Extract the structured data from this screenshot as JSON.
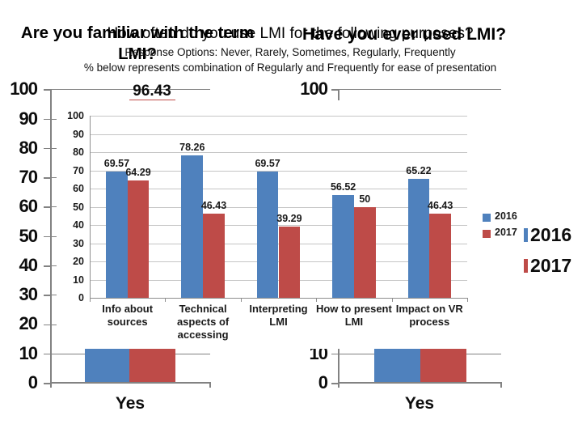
{
  "slide": {
    "titles": {
      "familiar_line1": "Are you familiar with the term",
      "familiar_line2": "LMI?",
      "how_often": "How often do you use LMI for the following purposes?",
      "ever_used": "Have you ever used LMI?",
      "subtitle1": "Response Options: Never, Rarely, Sometimes, Regularly, Frequently",
      "subtitle2": "% below represents combination of Regularly and Frequently for ease of presentation"
    },
    "colors": {
      "blue_2016": "#4f81bd",
      "red_2017": "#be4b48",
      "bg_grid": "#828282",
      "fg_grid": "#c5c5c5",
      "fg_axis": "#8e8e8e"
    }
  },
  "chart_data": [
    {
      "id": "are-you-familiar",
      "type": "bar",
      "title": "Are you familiar with the term LMI?",
      "categories": [
        "Yes"
      ],
      "series": [
        {
          "name": "2016",
          "color": "#4f81bd",
          "values": [
            null
          ]
        },
        {
          "name": "2017",
          "color": "#be4b48",
          "values": [
            96.43
          ]
        }
      ],
      "ylim": [
        0,
        100
      ],
      "ytick_step": 10,
      "grid": true,
      "legend_position": "none-visible",
      "note": "background chart; bars mostly hidden behind the front chart, only the 96.43 data label, axis scale, bar bases and Yes label are visible"
    },
    {
      "id": "how-often-use-lmi",
      "type": "bar",
      "title": "How often do you use LMI for the following purposes?",
      "subtitle": [
        "Response Options: Never, Rarely, Sometimes, Regularly, Frequently",
        "% below represents combination of Regularly and Frequently for ease of presentation"
      ],
      "categories": [
        "Info about sources",
        "Technical aspects of accessing",
        "Interpreting LMI",
        "How to present LMI",
        "Impact on VR process"
      ],
      "series": [
        {
          "name": "2016",
          "color": "#4f81bd",
          "values": [
            69.57,
            78.26,
            69.57,
            56.52,
            65.22
          ]
        },
        {
          "name": "2017",
          "color": "#be4b48",
          "values": [
            64.29,
            46.43,
            39.29,
            50,
            46.43
          ]
        }
      ],
      "ylim": [
        0,
        100
      ],
      "ytick_step": 10,
      "grid": true,
      "legend_position": "right"
    },
    {
      "id": "have-you-ever-used",
      "type": "bar",
      "title": "Have you ever used LMI?",
      "categories": [
        "Yes"
      ],
      "series": [
        {
          "name": "2016",
          "color": "#4f81bd",
          "values": [
            null
          ]
        },
        {
          "name": "2017",
          "color": "#be4b48",
          "values": [
            null
          ]
        }
      ],
      "ylim": [
        0,
        100
      ],
      "ytick_step": 10,
      "grid": true,
      "legend_position": "right",
      "note": "background chart; bars mostly hidden behind the front chart, only axis scale, bar bases, Yes label and large right legend are visible"
    }
  ]
}
